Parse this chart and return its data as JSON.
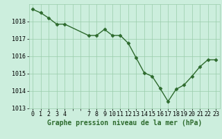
{
  "x": [
    0,
    1,
    2,
    3,
    4,
    7,
    8,
    9,
    10,
    11,
    12,
    13,
    14,
    15,
    16,
    17,
    18,
    19,
    20,
    21,
    22,
    23
  ],
  "y": [
    1018.7,
    1018.5,
    1018.2,
    1017.85,
    1017.85,
    1017.2,
    1017.2,
    1017.55,
    1017.2,
    1017.2,
    1016.75,
    1015.9,
    1015.05,
    1014.85,
    1014.15,
    1013.4,
    1014.1,
    1014.35,
    1014.85,
    1015.4,
    1015.8,
    1015.8
  ],
  "line_color": "#2d6a2d",
  "marker_color": "#2d6a2d",
  "bg_color": "#cceedd",
  "grid_color_major": "#99ccaa",
  "grid_color_minor": "#bbddcc",
  "ylim": [
    1013.0,
    1019.0
  ],
  "yticks": [
    1013,
    1014,
    1015,
    1016,
    1017,
    1018
  ],
  "xlim": [
    -0.5,
    23.5
  ],
  "xlabel": "Graphe pression niveau de la mer (hPa)",
  "xlabel_fontsize": 7,
  "tick_fontsize": 6,
  "linewidth": 1.0,
  "markersize": 2.5
}
